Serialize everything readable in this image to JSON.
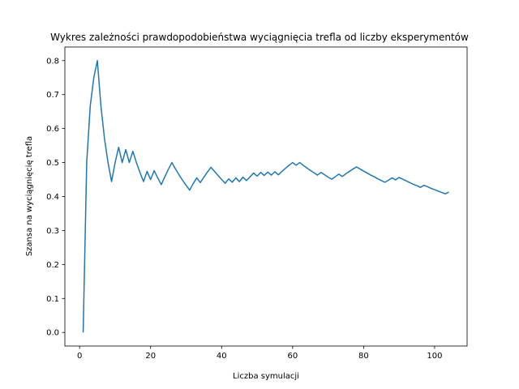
{
  "chart_data": {
    "type": "line",
    "title": "Wykres zależności prawdopodobieństwa wyciągnięcia trefla od liczby eksperymentów",
    "xlabel": "Liczba symulacji",
    "ylabel": "Szansa na wyciągnięcię trefla",
    "xlim": [
      -4.15,
      109.15
    ],
    "ylim": [
      -0.04,
      0.84
    ],
    "xticks": [
      0,
      20,
      40,
      60,
      80,
      100
    ],
    "yticks": [
      0.0,
      0.1,
      0.2,
      0.3,
      0.4,
      0.5,
      0.6,
      0.7,
      0.8
    ],
    "grid": false,
    "line_color": "#1f77b4",
    "series": [
      {
        "x": [
          1,
          2,
          3,
          4,
          5,
          6,
          7,
          8,
          9,
          10,
          11,
          12,
          13,
          14,
          15,
          16,
          17,
          18,
          19,
          20,
          21,
          22,
          23,
          24,
          25,
          26,
          27,
          28,
          29,
          30,
          31,
          32,
          33,
          34,
          35,
          36,
          37,
          38,
          39,
          40,
          41,
          42,
          43,
          44,
          45,
          46,
          47,
          48,
          49,
          50,
          51,
          52,
          53,
          54,
          55,
          56,
          57,
          58,
          59,
          60,
          61,
          62,
          63,
          64,
          65,
          66,
          67,
          68,
          69,
          70,
          71,
          72,
          73,
          74,
          75,
          76,
          77,
          78,
          79,
          80,
          81,
          82,
          83,
          84,
          85,
          86,
          87,
          88,
          89,
          90,
          91,
          92,
          93,
          94,
          95,
          96,
          97,
          98,
          99,
          100,
          101,
          102,
          103,
          104
        ],
        "values": [
          0.0,
          0.5,
          0.667,
          0.75,
          0.8,
          0.667,
          0.571,
          0.5,
          0.444,
          0.5,
          0.545,
          0.5,
          0.538,
          0.5,
          0.533,
          0.5,
          0.471,
          0.444,
          0.474,
          0.45,
          0.476,
          0.455,
          0.435,
          0.458,
          0.48,
          0.5,
          0.481,
          0.464,
          0.448,
          0.433,
          0.419,
          0.438,
          0.455,
          0.441,
          0.457,
          0.472,
          0.486,
          0.474,
          0.462,
          0.45,
          0.439,
          0.452,
          0.442,
          0.455,
          0.444,
          0.457,
          0.447,
          0.458,
          0.469,
          0.46,
          0.471,
          0.462,
          0.472,
          0.463,
          0.473,
          0.464,
          0.474,
          0.483,
          0.492,
          0.5,
          0.492,
          0.5,
          0.492,
          0.484,
          0.477,
          0.47,
          0.463,
          0.471,
          0.464,
          0.457,
          0.451,
          0.458,
          0.466,
          0.459,
          0.467,
          0.474,
          0.481,
          0.487,
          0.481,
          0.475,
          0.469,
          0.463,
          0.458,
          0.452,
          0.447,
          0.442,
          0.448,
          0.455,
          0.449,
          0.456,
          0.451,
          0.446,
          0.441,
          0.436,
          0.432,
          0.427,
          0.433,
          0.429,
          0.424,
          0.42,
          0.416,
          0.412,
          0.408,
          0.413
        ]
      }
    ]
  }
}
